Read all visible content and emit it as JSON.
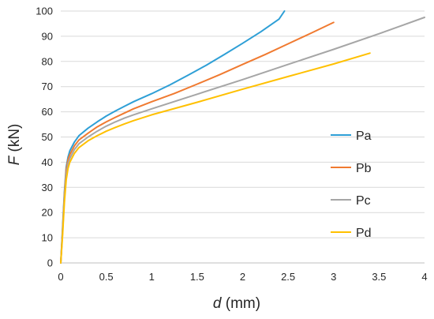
{
  "chart_data": {
    "type": "line",
    "xlabel_var": "d",
    "xlabel_unit": " (mm)",
    "ylabel_var": "F",
    "ylabel_unit": " (kN)",
    "xlim": [
      0,
      4
    ],
    "ylim": [
      0,
      100
    ],
    "xticks": [
      0,
      0.5,
      1,
      1.5,
      2,
      2.5,
      3,
      3.5,
      4
    ],
    "yticks": [
      0,
      10,
      20,
      30,
      40,
      50,
      60,
      70,
      80,
      90,
      100
    ],
    "grid": "horizontal",
    "legend_position": "right",
    "series": [
      {
        "name": "Pa",
        "color": "#2E9FD6",
        "x": [
          0,
          0.02,
          0.04,
          0.06,
          0.08,
          0.1,
          0.15,
          0.2,
          0.3,
          0.4,
          0.5,
          0.6,
          0.7,
          0.8,
          1.0,
          1.2,
          1.4,
          1.6,
          1.8,
          2.0,
          2.2,
          2.4,
          2.46
        ],
        "y": [
          0,
          14,
          28,
          38,
          42,
          44.5,
          48,
          50.5,
          53.5,
          56,
          58.3,
          60.3,
          62.2,
          64,
          67.2,
          70.7,
          74.5,
          78.5,
          82.8,
          87.2,
          91.8,
          96.8,
          100
        ]
      },
      {
        "name": "Pb",
        "color": "#F07A30",
        "x": [
          0,
          0.02,
          0.04,
          0.06,
          0.08,
          0.1,
          0.15,
          0.2,
          0.3,
          0.4,
          0.5,
          0.6,
          0.7,
          0.8,
          1.0,
          1.25,
          1.5,
          1.75,
          2.0,
          2.25,
          2.5,
          2.75,
          3.0
        ],
        "y": [
          0,
          13,
          27,
          37,
          41,
          43,
          46.5,
          48.8,
          51.5,
          54,
          56,
          57.8,
          59.5,
          61.2,
          64,
          67.3,
          71,
          74.8,
          78.8,
          82.8,
          87,
          91.2,
          95.5
        ]
      },
      {
        "name": "Pc",
        "color": "#A6A6A6",
        "x": [
          0,
          0.02,
          0.04,
          0.06,
          0.08,
          0.1,
          0.15,
          0.2,
          0.3,
          0.4,
          0.5,
          0.6,
          0.7,
          0.8,
          1.0,
          1.5,
          2.0,
          2.5,
          3.0,
          3.5,
          4.0
        ],
        "y": [
          0,
          12,
          26,
          35,
          39.5,
          41.5,
          45,
          47.3,
          50,
          52.3,
          54.3,
          56,
          57.5,
          58.8,
          61.2,
          67,
          72.8,
          78.8,
          84.8,
          91,
          97.5
        ]
      },
      {
        "name": "Pd",
        "color": "#FFC000",
        "x": [
          0,
          0.02,
          0.04,
          0.06,
          0.08,
          0.1,
          0.15,
          0.2,
          0.3,
          0.4,
          0.5,
          0.6,
          0.7,
          0.8,
          1.0,
          1.5,
          2.0,
          2.5,
          3.0,
          3.4
        ],
        "y": [
          0,
          11,
          24,
          33,
          37.5,
          40,
          43.5,
          45.8,
          48.5,
          50.5,
          52.3,
          53.8,
          55.2,
          56.5,
          58.8,
          63.8,
          69,
          74,
          79,
          83.3
        ]
      }
    ]
  }
}
